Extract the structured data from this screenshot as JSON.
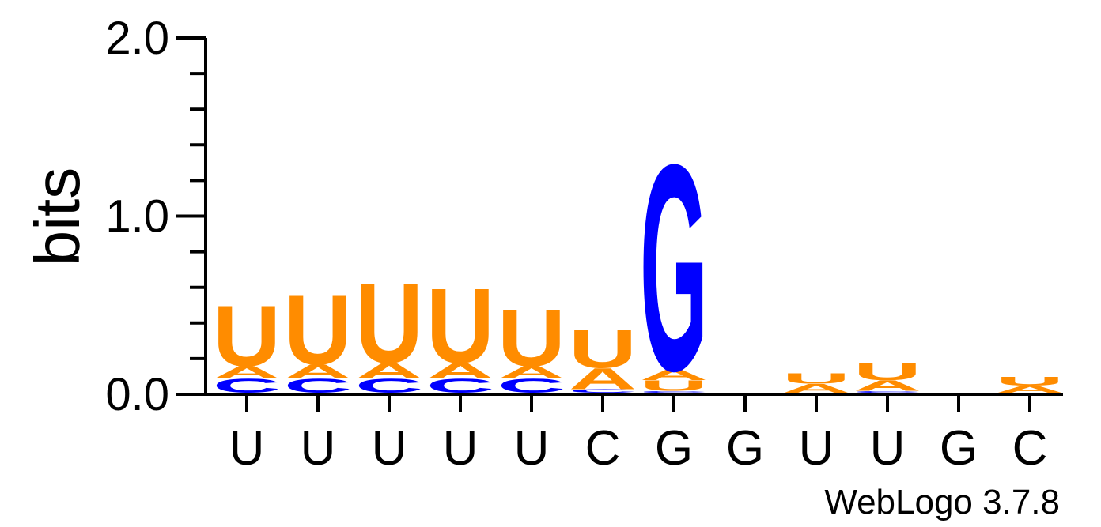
{
  "chart_data": {
    "type": "sequence-logo",
    "ylabel": "bits",
    "ylim": [
      0,
      2.0
    ],
    "y_ticks": [
      "0.0",
      "1.0",
      "2.0"
    ],
    "y_minor_step": 0.2,
    "x_labels": [
      "U",
      "U",
      "U",
      "U",
      "U",
      "C",
      "G",
      "G",
      "U",
      "U",
      "G",
      "C"
    ],
    "footer": "WebLogo 3.7.8",
    "colors": {
      "A": "#ff8c00",
      "U": "#ff8c00",
      "C": "#0000ff",
      "G": "#0000ff"
    },
    "positions": [
      {
        "stack": [
          {
            "letter": "C",
            "bits": 0.08
          },
          {
            "letter": "A",
            "bits": 0.07
          },
          {
            "letter": "U",
            "bits": 0.35
          }
        ]
      },
      {
        "stack": [
          {
            "letter": "C",
            "bits": 0.08
          },
          {
            "letter": "A",
            "bits": 0.08
          },
          {
            "letter": "U",
            "bits": 0.4
          }
        ]
      },
      {
        "stack": [
          {
            "letter": "C",
            "bits": 0.08
          },
          {
            "letter": "A",
            "bits": 0.09
          },
          {
            "letter": "U",
            "bits": 0.46
          }
        ]
      },
      {
        "stack": [
          {
            "letter": "C",
            "bits": 0.08
          },
          {
            "letter": "A",
            "bits": 0.09
          },
          {
            "letter": "U",
            "bits": 0.43
          }
        ]
      },
      {
        "stack": [
          {
            "letter": "C",
            "bits": 0.08
          },
          {
            "letter": "A",
            "bits": 0.07
          },
          {
            "letter": "U",
            "bits": 0.33
          }
        ]
      },
      {
        "stack": [
          {
            "letter": "C",
            "bits": 0.02
          },
          {
            "letter": "A",
            "bits": 0.12
          },
          {
            "letter": "U",
            "bits": 0.22
          }
        ]
      },
      {
        "stack": [
          {
            "letter": "C",
            "bits": 0.01
          },
          {
            "letter": "U",
            "bits": 0.06
          },
          {
            "letter": "A",
            "bits": 0.06
          },
          {
            "letter": "G",
            "bits": 1.19
          }
        ]
      },
      {
        "stack": []
      },
      {
        "stack": [
          {
            "letter": "A",
            "bits": 0.05
          },
          {
            "letter": "U",
            "bits": 0.06
          }
        ]
      },
      {
        "stack": [
          {
            "letter": "C",
            "bits": 0.01
          },
          {
            "letter": "A",
            "bits": 0.06
          },
          {
            "letter": "U",
            "bits": 0.1
          }
        ]
      },
      {
        "stack": []
      },
      {
        "stack": [
          {
            "letter": "A",
            "bits": 0.04
          },
          {
            "letter": "U",
            "bits": 0.05
          }
        ]
      }
    ]
  }
}
